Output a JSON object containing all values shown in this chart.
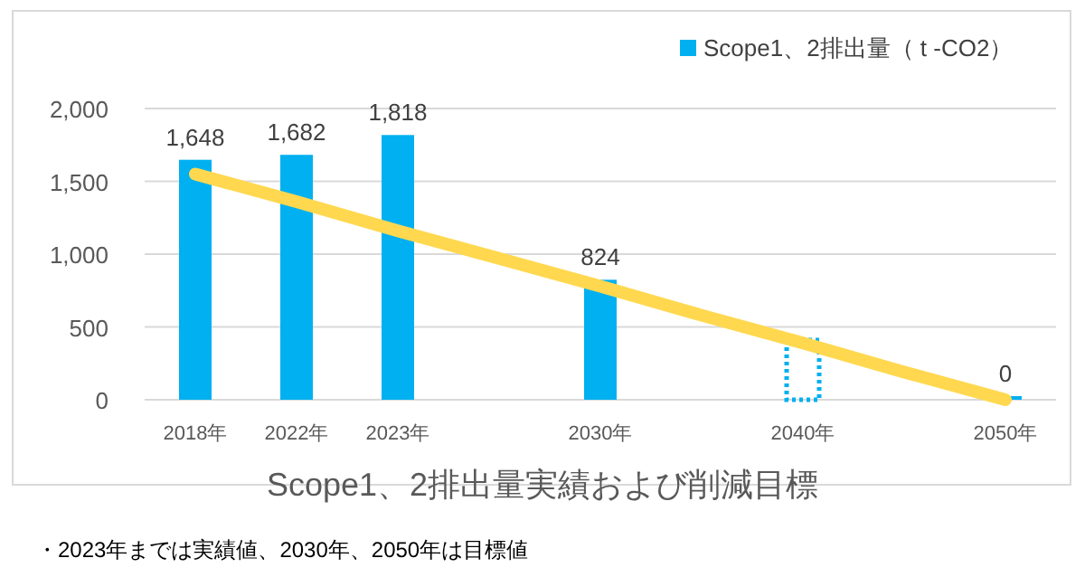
{
  "chart_data": {
    "type": "bar",
    "title": "Scope1、2排出量実績および削減目標",
    "categories": [
      "2018年",
      "2022年",
      "2023年",
      null,
      "2030年",
      null,
      "2040年",
      null,
      "2050年"
    ],
    "series": [
      {
        "name": "Scope1、2排出量（ t -CO2）",
        "color": "#00b0f0",
        "values": [
          1648,
          1682,
          1818,
          null,
          824,
          null,
          null,
          null,
          0
        ],
        "value_labels": [
          "1,648",
          "1,682",
          "1,818",
          null,
          "824",
          null,
          null,
          null,
          "0"
        ]
      },
      {
        "type": "bar",
        "color": "#00b0f0",
        "line_style": "dotted",
        "values": [
          null,
          null,
          null,
          null,
          null,
          null,
          410,
          null,
          null
        ]
      },
      {
        "type": "line",
        "color": "#ffd84f",
        "values": [
          1550,
          1360,
          1160,
          970,
          780,
          580,
          390,
          190,
          0
        ]
      }
    ],
    "ylim": [
      0,
      2000
    ],
    "yticks": [
      {
        "value": 0,
        "label": "0"
      },
      {
        "value": 500,
        "label": "500"
      },
      {
        "value": 1000,
        "label": "1,000"
      },
      {
        "value": 1500,
        "label": "1,500"
      },
      {
        "value": 2000,
        "label": "2,000"
      }
    ],
    "grid": "y",
    "legend": "top right",
    "annotations": [
      "・2023年までは実績値、2030年、2050年は目標値"
    ]
  }
}
